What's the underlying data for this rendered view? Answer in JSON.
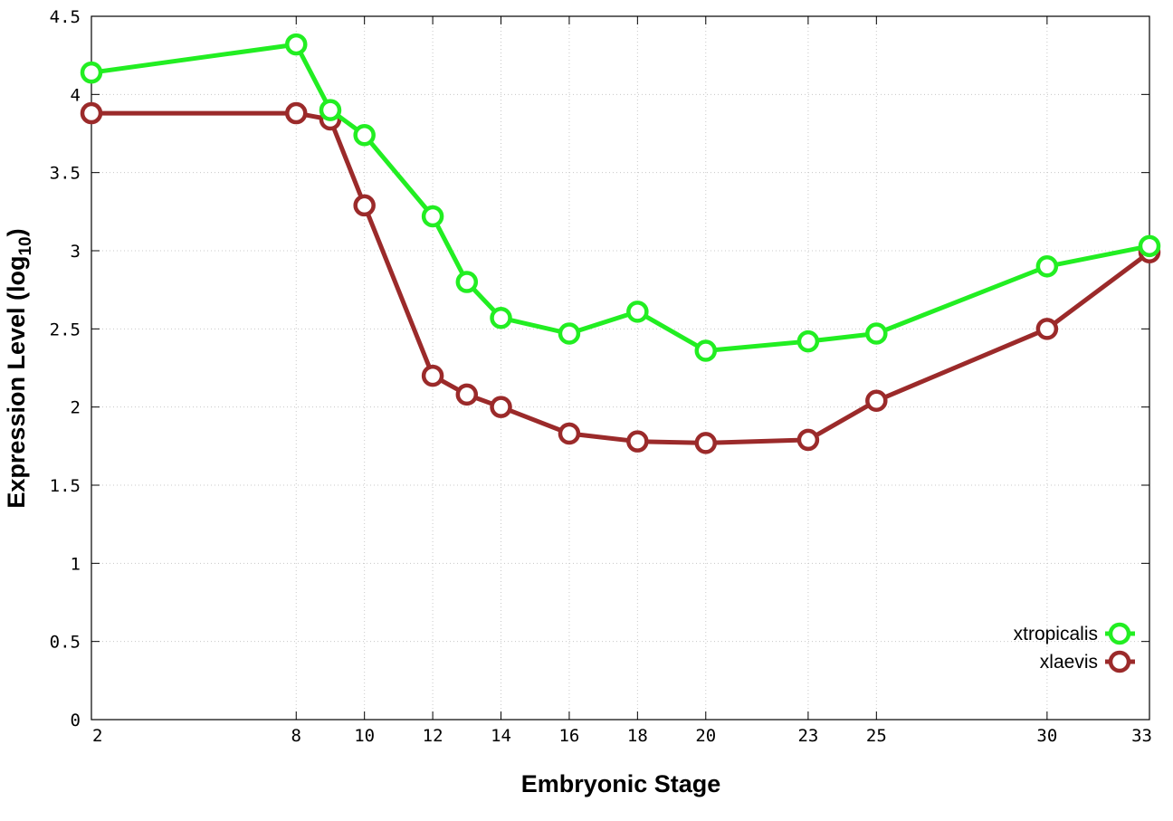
{
  "chart_data": {
    "type": "line",
    "xlabel": "Embryonic Stage",
    "ylabel_main": "Expression Level (log",
    "ylabel_sub": "10",
    "ylabel_close": ")",
    "x": [
      2,
      8,
      9,
      10,
      12,
      13,
      14,
      16,
      18,
      20,
      23,
      25,
      30,
      33
    ],
    "xticks": [
      2,
      8,
      10,
      12,
      14,
      16,
      18,
      20,
      23,
      25,
      30,
      33
    ],
    "xlim": [
      2,
      33
    ],
    "ylim": [
      0,
      4.5
    ],
    "yticks": [
      "0",
      "0.5",
      "1",
      "1.5",
      "2",
      "2.5",
      "3",
      "3.5",
      "4",
      "4.5"
    ],
    "grid": true,
    "legend_position": "bottom-right",
    "series": [
      {
        "name": "xtropicalis",
        "color": "#22ee22",
        "values": [
          4.14,
          4.32,
          3.9,
          3.74,
          3.22,
          2.8,
          2.57,
          2.47,
          2.61,
          2.36,
          2.42,
          2.47,
          2.9,
          3.03
        ]
      },
      {
        "name": "xlaevis",
        "color": "#9b2a2a",
        "values": [
          3.88,
          3.88,
          3.84,
          3.29,
          2.2,
          2.08,
          2.0,
          1.83,
          1.78,
          1.77,
          1.79,
          2.04,
          2.5,
          2.99
        ]
      }
    ]
  }
}
